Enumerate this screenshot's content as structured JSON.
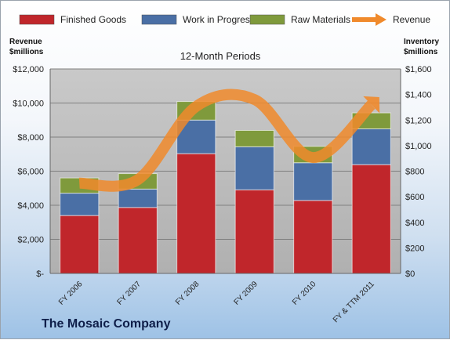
{
  "chart_data": {
    "type": "bar",
    "stacked": true,
    "title": "12-Month Periods",
    "footer": "The Mosaic Company",
    "ylabel_left": [
      "Revenue",
      "$millions"
    ],
    "ylabel_right": [
      "Inventory",
      "$millions"
    ],
    "categories": [
      "FY 2006",
      "FY 2007",
      "FY 2008",
      "FY 2009",
      "FY 2010",
      "FY & TTM 2011"
    ],
    "y_left_ticks": [
      "$-",
      "$2,000",
      "$4,000",
      "$6,000",
      "$8,000",
      "$10,000",
      "$12,000"
    ],
    "y_right_ticks": [
      "$0",
      "$200",
      "$400",
      "$600",
      "$800",
      "$1,000",
      "$1,200",
      "$1,400",
      "$1,600"
    ],
    "ylim_left": [
      0,
      12000
    ],
    "ylim_right": [
      0,
      1600
    ],
    "grid": true,
    "legend_position": "top",
    "series": [
      {
        "name": "Finished Goods",
        "axis": "right",
        "color": "#c0262b",
        "values": [
          453,
          516,
          937,
          654,
          571,
          851
        ]
      },
      {
        "name": "Work in Progress",
        "axis": "right",
        "color": "#4a6fa5",
        "values": [
          175,
          144,
          263,
          337,
          295,
          280
        ]
      },
      {
        "name": "Raw Materials",
        "axis": "right",
        "color": "#7f9a3c",
        "values": [
          119,
          121,
          145,
          128,
          128,
          125
        ]
      }
    ],
    "line_series": {
      "name": "Revenue",
      "axis": "left",
      "color": "#f08a2c",
      "values": [
        5300,
        5500,
        9800,
        10200,
        6800,
        9900
      ]
    }
  }
}
